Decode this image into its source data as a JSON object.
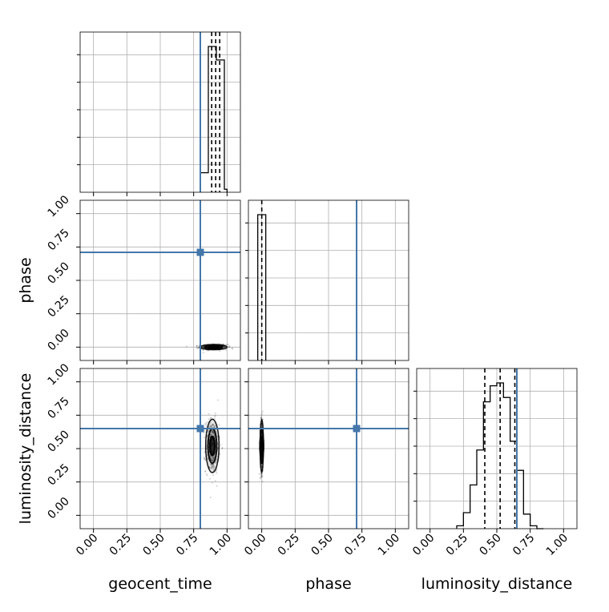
{
  "figure": {
    "type": "corner",
    "parameters": [
      "geocent_time",
      "phase",
      "luminosity_distance"
    ],
    "truth_color": "#4477aa",
    "hist_color": "#000000",
    "grid": true
  },
  "chart_data": {
    "type": "corner",
    "labels": {
      "geocent_time": "geocent_time",
      "phase": "phase",
      "luminosity_distance": "luminosity_distance"
    },
    "axis_range": [
      -0.1,
      1.1
    ],
    "tick_labels": [
      "0.00",
      "0.25",
      "0.50",
      "0.75",
      "1.00"
    ],
    "tick_values": [
      0,
      0.25,
      0.5,
      0.75,
      1.0
    ],
    "truths": {
      "geocent_time": 0.8,
      "phase": 0.71,
      "luminosity_distance": 0.65
    },
    "quantiles": {
      "geocent_time": [
        0.885,
        0.915,
        0.945
      ],
      "phase": [
        0.0
      ],
      "luminosity_distance": [
        0.41,
        0.525,
        0.635
      ]
    },
    "histograms": {
      "geocent_time": {
        "bin_edges": [
          0.8,
          0.86,
          0.92,
          0.98,
          1.0
        ],
        "counts": [
          0.13,
          0.97,
          0.88,
          0.02
        ]
      },
      "phase": {
        "bin_edges": [
          -0.03,
          0.03
        ],
        "counts": [
          1.0
        ]
      },
      "luminosity_distance": {
        "bin_edges": [
          0.2,
          0.25,
          0.3,
          0.35,
          0.4,
          0.45,
          0.5,
          0.55,
          0.6,
          0.65,
          0.7,
          0.75,
          0.8,
          0.85
        ],
        "counts": [
          0.02,
          0.11,
          0.3,
          0.54,
          0.87,
          0.98,
          1.0,
          0.9,
          0.6,
          0.4,
          0.1,
          0.02,
          0.0
        ]
      }
    },
    "scatter": {
      "geocent_time_vs_phase": {
        "center": [
          0.9,
          0.0
        ],
        "spread": [
          0.05,
          0.01
        ]
      },
      "geocent_time_vs_luminosity_distance": {
        "center": [
          0.89,
          0.52
        ],
        "spread": [
          0.025,
          0.1
        ]
      },
      "phase_vs_luminosity_distance": {
        "center": [
          0.0,
          0.52
        ],
        "spread": [
          0.006,
          0.1
        ]
      }
    }
  }
}
